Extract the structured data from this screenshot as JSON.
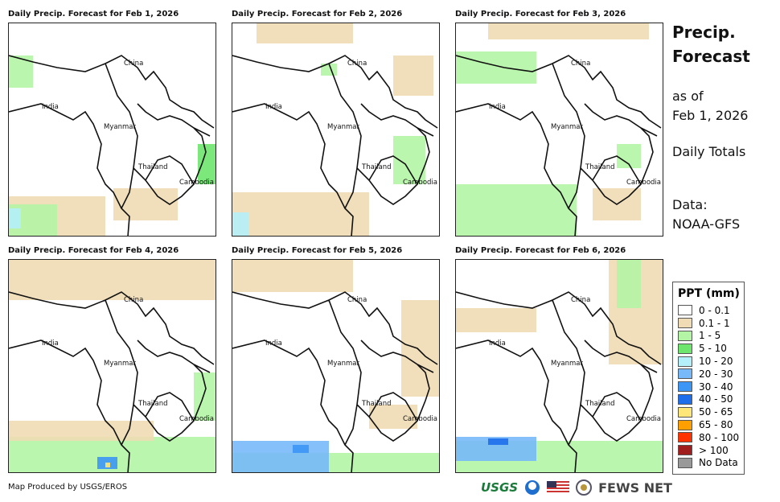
{
  "panels": [
    {
      "title": "Daily Precip. Forecast for Feb 1, 2026"
    },
    {
      "title": "Daily Precip. Forecast for Feb 2, 2026"
    },
    {
      "title": "Daily Precip. Forecast for Feb 3, 2026"
    },
    {
      "title": "Daily Precip. Forecast for Feb 4, 2026"
    },
    {
      "title": "Daily Precip. Forecast for Feb 5, 2026"
    },
    {
      "title": "Daily Precip. Forecast for Feb 6, 2026"
    }
  ],
  "countries": [
    "China",
    "India",
    "Myanmar",
    "Thailand",
    "Cambodia"
  ],
  "side": {
    "title1": "Precip.",
    "title2": "Forecast",
    "asof1": "as of",
    "asof2": "Feb 1, 2026",
    "totals": "Daily Totals",
    "data1": "Data:",
    "data2": "NOAA-GFS"
  },
  "legend": {
    "title": "PPT (mm)",
    "items": [
      {
        "label": "0 - 0.1",
        "color": "#ffffff"
      },
      {
        "label": "0.1 - 1",
        "color": "#f0dcb4"
      },
      {
        "label": "1 - 5",
        "color": "#b4f5a5"
      },
      {
        "label": "5 - 10",
        "color": "#6ee66e"
      },
      {
        "label": "10 - 20",
        "color": "#b4f0fa"
      },
      {
        "label": "20 - 30",
        "color": "#78b9fa"
      },
      {
        "label": "30 - 40",
        "color": "#3c96f5"
      },
      {
        "label": "40 - 50",
        "color": "#1e6eeb"
      },
      {
        "label": "50 - 65",
        "color": "#ffe678"
      },
      {
        "label": "65 - 80",
        "color": "#ffa000"
      },
      {
        "label": "80 - 100",
        "color": "#ff3200"
      },
      {
        "label": "> 100",
        "color": "#a01e1e"
      },
      {
        "label": "No Data",
        "color": "#999999"
      }
    ]
  },
  "credit": "Map Produced by USGS/EROS",
  "logos": {
    "usgs": "USGS",
    "fews": "FEWS NET"
  }
}
